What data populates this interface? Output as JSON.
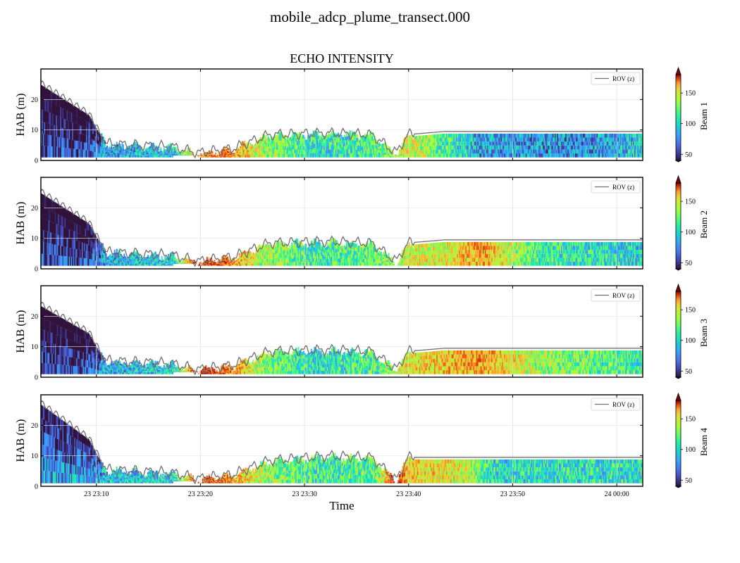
{
  "chart_data": {
    "type": "heatmap",
    "suptitle": "mobile_adcp_plume_transect.000",
    "title": "ECHO INTENSITY",
    "xlabel": "Time",
    "ylabel": "HAB (m)",
    "legend_label": "ROV (z)",
    "legend_position": "top-right",
    "grid": true,
    "colormap": "turbo",
    "x_range": [
      "23 23:04:40",
      "24 00:02:30"
    ],
    "x_ticks": [
      "23 23:10",
      "23 23:20",
      "23 23:30",
      "23 23:40",
      "23 23:50",
      "24 00:00"
    ],
    "y_range": [
      0,
      30
    ],
    "y_ticks": [
      "0",
      "10",
      "20"
    ],
    "colorbar_range": [
      40,
      180
    ],
    "colorbar_ticks": [
      "50",
      "100",
      "150"
    ],
    "colorbar_extend": "both",
    "panels": [
      {
        "beam": "Beam 1",
        "start_depth": 25.5,
        "rov_profile": [
          [
            0,
            25.5
          ],
          [
            8,
            15.5
          ],
          [
            10,
            8.5
          ],
          [
            11,
            5.5
          ],
          [
            22,
            4.5
          ],
          [
            26,
            2.5
          ],
          [
            32,
            4
          ],
          [
            38,
            8.5
          ],
          [
            48,
            9
          ],
          [
            55,
            8.5
          ],
          [
            59,
            2.5
          ],
          [
            61,
            8.5
          ],
          [
            67,
            9.5
          ],
          [
            100,
            9.5
          ]
        ],
        "intensity_profile": [
          [
            0,
            55
          ],
          [
            7,
            55
          ],
          [
            10,
            70
          ],
          [
            22,
            78
          ],
          [
            26,
            140
          ],
          [
            31,
            150
          ],
          [
            37,
            110
          ],
          [
            46,
            85
          ],
          [
            56,
            95
          ],
          [
            61,
            120
          ],
          [
            67,
            95
          ],
          [
            73,
            70
          ],
          [
            90,
            65
          ],
          [
            100,
            80
          ]
        ]
      },
      {
        "beam": "Beam 2",
        "start_depth": 25.5,
        "rov_profile": [
          [
            0,
            25.5
          ],
          [
            8,
            15.5
          ],
          [
            10,
            8.5
          ],
          [
            11,
            5.5
          ],
          [
            22,
            4.5
          ],
          [
            26,
            2.5
          ],
          [
            32,
            4
          ],
          [
            38,
            8.5
          ],
          [
            48,
            9
          ],
          [
            55,
            8.5
          ],
          [
            59,
            2.5
          ],
          [
            61,
            8.5
          ],
          [
            67,
            9.5
          ],
          [
            100,
            9.5
          ]
        ],
        "intensity_profile": [
          [
            0,
            55
          ],
          [
            7,
            55
          ],
          [
            10,
            70
          ],
          [
            22,
            80
          ],
          [
            26,
            165
          ],
          [
            31,
            150
          ],
          [
            37,
            110
          ],
          [
            46,
            90
          ],
          [
            56,
            100
          ],
          [
            61,
            120
          ],
          [
            67,
            120
          ],
          [
            73,
            140
          ],
          [
            83,
            90
          ],
          [
            100,
            80
          ]
        ]
      },
      {
        "beam": "Beam 3",
        "start_depth": 24,
        "rov_profile": [
          [
            0,
            24
          ],
          [
            8,
            15
          ],
          [
            10,
            8
          ],
          [
            11,
            5.5
          ],
          [
            22,
            4.5
          ],
          [
            26,
            2.5
          ],
          [
            32,
            4
          ],
          [
            38,
            8.5
          ],
          [
            48,
            9
          ],
          [
            55,
            8.5
          ],
          [
            59,
            2.5
          ],
          [
            61,
            8.5
          ],
          [
            67,
            9.5
          ],
          [
            100,
            9.5
          ]
        ],
        "intensity_profile": [
          [
            0,
            50
          ],
          [
            7,
            55
          ],
          [
            10,
            70
          ],
          [
            22,
            80
          ],
          [
            26,
            170
          ],
          [
            31,
            150
          ],
          [
            37,
            105
          ],
          [
            46,
            85
          ],
          [
            56,
            95
          ],
          [
            61,
            125
          ],
          [
            67,
            130
          ],
          [
            73,
            140
          ],
          [
            83,
            110
          ],
          [
            100,
            90
          ]
        ]
      },
      {
        "beam": "Beam 4",
        "start_depth": 27.5,
        "rov_profile": [
          [
            0,
            27.5
          ],
          [
            8,
            16
          ],
          [
            10,
            8.5
          ],
          [
            11,
            5.5
          ],
          [
            22,
            4.5
          ],
          [
            26,
            2.5
          ],
          [
            32,
            4
          ],
          [
            38,
            8.5
          ],
          [
            48,
            10
          ],
          [
            55,
            9.5
          ],
          [
            59,
            2
          ],
          [
            61,
            9.5
          ],
          [
            67,
            9.5
          ],
          [
            100,
            9.5
          ]
        ],
        "intensity_profile": [
          [
            0,
            70
          ],
          [
            7,
            70
          ],
          [
            10,
            75
          ],
          [
            22,
            80
          ],
          [
            26,
            160
          ],
          [
            31,
            145
          ],
          [
            37,
            110
          ],
          [
            46,
            90
          ],
          [
            56,
            100
          ],
          [
            59,
            175
          ],
          [
            61,
            130
          ],
          [
            70,
            120
          ],
          [
            75,
            85
          ],
          [
            100,
            85
          ]
        ]
      }
    ]
  }
}
